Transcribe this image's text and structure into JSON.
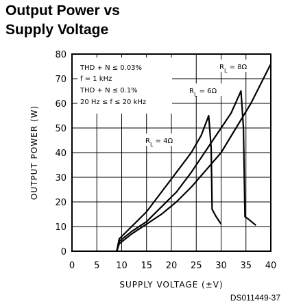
{
  "header": {
    "title_line1": "Output Power vs",
    "title_line2": "Supply Voltage"
  },
  "footer": {
    "code": "DS011449-37"
  },
  "chart_data": {
    "type": "line",
    "xlabel": "SUPPLY VOLTAGE (±V)",
    "ylabel": "OUTPUT POWER (W)",
    "xlim": [
      0,
      40
    ],
    "ylim": [
      0,
      80
    ],
    "xticks": [
      "0",
      "5",
      "10",
      "15",
      "20",
      "25",
      "30",
      "35",
      "40"
    ],
    "yticks": [
      "0",
      "10",
      "20",
      "30",
      "40",
      "50",
      "60",
      "70",
      "80"
    ],
    "grid": true,
    "conditions": [
      "THD + N ≤ 0.03%",
      "f = 1 kHz",
      "THD + N ≤ 0.1%",
      "20 Hz ≤ f ≤ 20 kHz"
    ],
    "series": [
      {
        "name": "RL = 4Ω",
        "label_main": "R",
        "label_sub": "L",
        "label_rest": " = 4Ω",
        "points": [
          [
            9,
            0
          ],
          [
            9.5,
            5
          ],
          [
            12,
            10
          ],
          [
            15,
            16
          ],
          [
            18,
            24
          ],
          [
            21,
            32
          ],
          [
            24,
            40
          ],
          [
            26,
            47
          ],
          [
            27.5,
            55
          ],
          [
            28,
            42
          ],
          [
            28.2,
            17
          ],
          [
            29,
            14
          ],
          [
            30,
            11
          ]
        ]
      },
      {
        "name": "RL = 6Ω",
        "label_main": "R",
        "label_sub": "L",
        "label_rest": " = 6Ω",
        "points": [
          [
            9,
            0
          ],
          [
            9.5,
            4
          ],
          [
            12,
            8
          ],
          [
            15,
            12
          ],
          [
            18,
            18
          ],
          [
            21,
            24
          ],
          [
            24,
            32
          ],
          [
            27,
            41
          ],
          [
            30,
            50
          ],
          [
            32,
            56
          ],
          [
            34,
            65
          ],
          [
            34.5,
            50
          ],
          [
            34.8,
            14
          ],
          [
            35.5,
            13
          ],
          [
            37,
            10.5
          ]
        ]
      },
      {
        "name": "RL = 8Ω",
        "label_main": "R",
        "label_sub": "L",
        "label_rest": " = 8Ω",
        "points": [
          [
            9,
            0
          ],
          [
            9.5,
            3
          ],
          [
            12,
            7
          ],
          [
            15,
            11
          ],
          [
            18,
            15
          ],
          [
            21,
            20
          ],
          [
            24,
            26
          ],
          [
            27,
            33
          ],
          [
            30,
            40
          ],
          [
            33,
            50
          ],
          [
            36,
            60
          ],
          [
            38,
            68
          ],
          [
            40,
            76
          ]
        ]
      }
    ]
  }
}
